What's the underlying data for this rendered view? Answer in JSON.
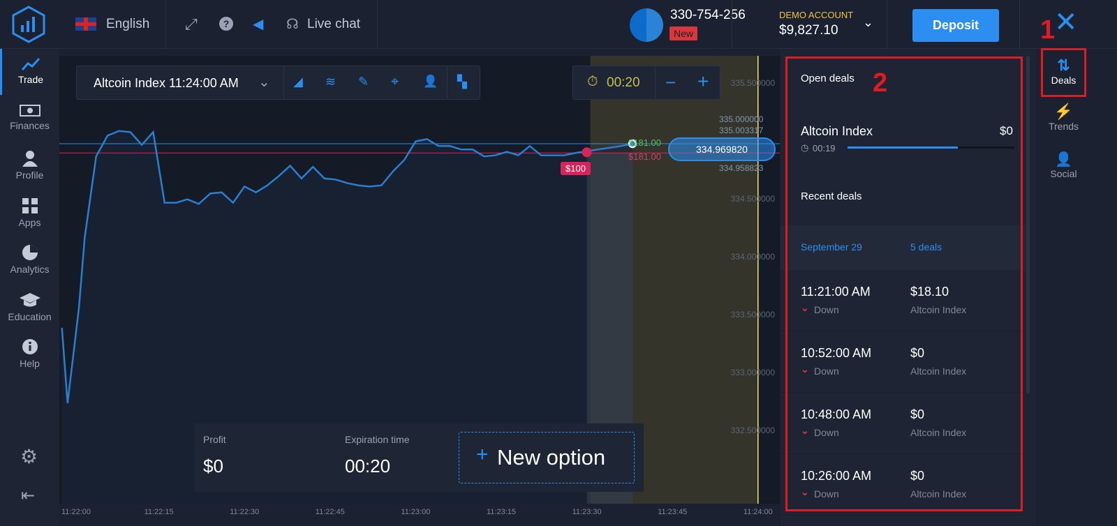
{
  "header": {
    "language": "English",
    "live_chat": "Live chat",
    "account_id": "330-754-256",
    "new_badge": "New",
    "account_type": "DEMO ACCOUNT",
    "balance": "$9,827.10",
    "deposit": "Deposit"
  },
  "sidebar": {
    "items": [
      {
        "label": "Trade",
        "icon": "trend-up-icon"
      },
      {
        "label": "Finances",
        "icon": "banknote-icon"
      },
      {
        "label": "Profile",
        "icon": "user-icon"
      },
      {
        "label": "Apps",
        "icon": "grid-icon"
      },
      {
        "label": "Analytics",
        "icon": "pie-icon"
      },
      {
        "label": "Education",
        "icon": "graduation-cap-icon"
      },
      {
        "label": "Help",
        "icon": "info-icon"
      }
    ]
  },
  "toolbar": {
    "asset": "Altcoin Index 11:24:00 AM",
    "timer": "00:20",
    "minus": "−",
    "plus": "+"
  },
  "chart": {
    "current_price": "334.969820",
    "overlay_prices": [
      "335.000000",
      "335.003317",
      "334.958823"
    ],
    "upper_label": "$181.00",
    "lower_label": "$181.00",
    "deal_label": "$100",
    "colors": {
      "line": "#2b7fd0",
      "current": "#2b8ef0",
      "deal": "#d9245b",
      "up": "#54c04a",
      "expiry": "#f3e27a"
    }
  },
  "chart_data": {
    "type": "line",
    "xlabel": "",
    "ylabel": "",
    "x_ticks": [
      "11:22:00",
      "11:22:15",
      "11:22:30",
      "11:22:45",
      "11:23:00",
      "11:23:15",
      "11:23:30",
      "11:23:45",
      "11:24:00"
    ],
    "y_ticks": [
      "335.500000",
      "335.000000",
      "334.500000",
      "334.000000",
      "333.500000",
      "333.000000",
      "332.500000"
    ],
    "ylim": [
      332.2,
      335.85
    ],
    "series": [
      {
        "x": [
          "11:21:58",
          "11:21:59",
          "11:22:01",
          "11:22:02",
          "11:22:04",
          "11:22:06",
          "11:22:08",
          "11:22:10",
          "11:22:12",
          "11:22:14",
          "11:22:16",
          "11:22:18",
          "11:22:20",
          "11:22:22",
          "11:22:24",
          "11:22:26",
          "11:22:28",
          "11:22:30",
          "11:22:32",
          "11:22:34",
          "11:22:36",
          "11:22:38",
          "11:22:40",
          "11:22:42",
          "11:22:44",
          "11:22:46",
          "11:22:48",
          "11:22:50",
          "11:22:52",
          "11:22:54",
          "11:22:56",
          "11:22:58",
          "11:23:00",
          "11:23:02",
          "11:23:04",
          "11:23:06",
          "11:23:08",
          "11:23:10",
          "11:23:12",
          "11:23:14",
          "11:23:16",
          "11:23:18",
          "11:23:20",
          "11:23:22",
          "11:23:24",
          "11:23:26",
          "11:23:28",
          "11:23:32",
          "11:23:36",
          "11:23:38"
        ],
        "y": [
          333.38,
          332.73,
          333.56,
          334.16,
          334.86,
          335.04,
          335.08,
          335.07,
          334.96,
          335.07,
          334.46,
          334.46,
          334.49,
          334.45,
          334.54,
          334.55,
          334.46,
          334.6,
          334.55,
          334.61,
          334.69,
          334.78,
          334.67,
          334.77,
          334.67,
          334.66,
          334.63,
          334.61,
          334.6,
          334.61,
          334.73,
          334.83,
          334.99,
          335.01,
          334.95,
          334.95,
          334.92,
          334.92,
          334.86,
          334.87,
          334.9,
          334.87,
          334.95,
          334.87,
          334.87,
          334.87,
          334.89,
          334.92,
          334.95,
          334.97
        ]
      }
    ],
    "deal": {
      "time": "11:23:30",
      "price": 334.89,
      "amount": "$100"
    },
    "expiration": "11:24:00",
    "grid": false
  },
  "bottom": {
    "profit_label": "Profit",
    "profit": "$0",
    "expiry_label": "Expiration time",
    "expiry": "00:20",
    "new_option": "New option"
  },
  "deals_panel": {
    "open_title": "Open deals",
    "open": {
      "asset": "Altcoin Index",
      "amount": "$0",
      "time": "00:19",
      "progress": 0.66
    },
    "recent_title": "Recent deals",
    "date": "September 29",
    "count": "5 deals",
    "recent": [
      {
        "time": "11:21:00 AM",
        "direction": "Down",
        "amount": "$18.10",
        "asset": "Altcoin Index"
      },
      {
        "time": "10:52:00 AM",
        "direction": "Down",
        "amount": "$0",
        "asset": "Altcoin Index"
      },
      {
        "time": "10:48:00 AM",
        "direction": "Down",
        "amount": "$0",
        "asset": "Altcoin Index"
      },
      {
        "time": "10:26:00 AM",
        "direction": "Down",
        "amount": "$0",
        "asset": "Altcoin Index"
      }
    ]
  },
  "rightbar": {
    "items": [
      {
        "label": "Deals"
      },
      {
        "label": "Trends"
      },
      {
        "label": "Social"
      }
    ]
  },
  "annotations": {
    "one": "1",
    "two": "2"
  }
}
